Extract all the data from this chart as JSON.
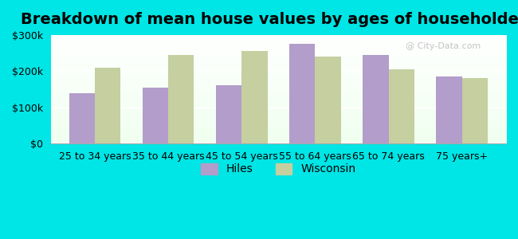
{
  "title": "Breakdown of mean house values by ages of householders",
  "categories": [
    "25 to 34 years",
    "35 to 44 years",
    "45 to 54 years",
    "55 to 64 years",
    "65 to 74 years",
    "75 years+"
  ],
  "hiles_values": [
    140000,
    155000,
    160000,
    275000,
    245000,
    185000
  ],
  "wisconsin_values": [
    210000,
    245000,
    255000,
    240000,
    205000,
    180000
  ],
  "hiles_color": "#b39dca",
  "wisconsin_color": "#c5cf9f",
  "background_color": "#00e5e5",
  "ylim": [
    0,
    300000
  ],
  "yticks": [
    0,
    100000,
    200000,
    300000
  ],
  "ytick_labels": [
    "$0",
    "$100k",
    "$200k",
    "$300k"
  ],
  "legend_labels": [
    "Hiles",
    "Wisconsin"
  ],
  "bar_width": 0.35,
  "title_fontsize": 14,
  "tick_fontsize": 9,
  "legend_fontsize": 10
}
